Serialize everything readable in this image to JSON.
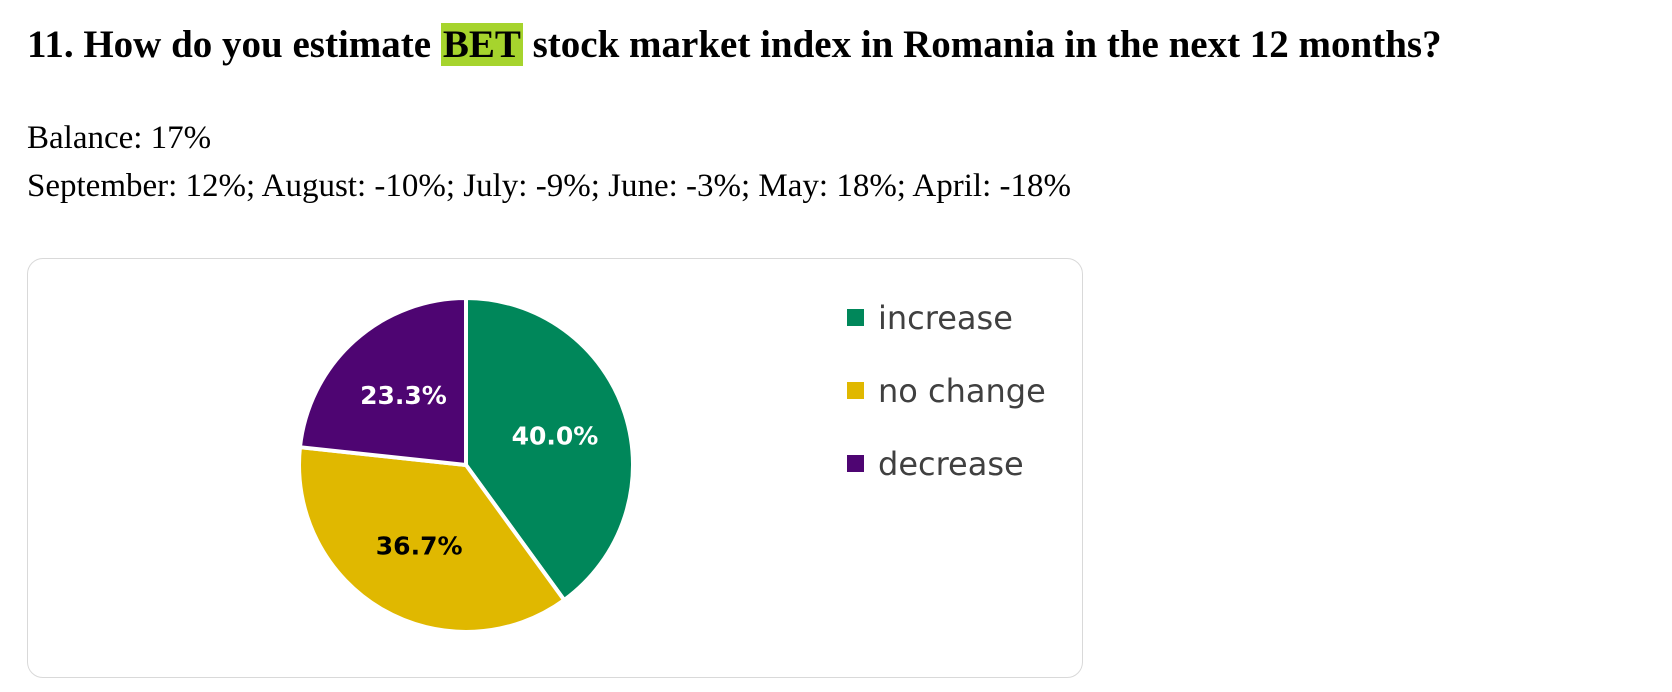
{
  "heading": {
    "prefix": "11. How do you estimate ",
    "highlight": "BET",
    "suffix": " stock market index in Romania in the next 12 months?"
  },
  "summary": {
    "balance": "Balance: 17%",
    "history": "September: 12%; August: -10%; July: -9%; June: -3%; May: 18%; April: -18%"
  },
  "chart_data": {
    "type": "pie",
    "title": "",
    "legend_position": "right",
    "slices": [
      {
        "label": "increase",
        "value": 40.0,
        "display": "40.0%",
        "color": "#00875a",
        "label_color": "#ffffff"
      },
      {
        "label": "no change",
        "value": 36.7,
        "display": "36.7%",
        "color": "#e0b800",
        "label_color": "#000000"
      },
      {
        "label": "decrease",
        "value": 23.3,
        "display": "23.3%",
        "color": "#4e0572",
        "label_color": "#ffffff"
      }
    ]
  }
}
